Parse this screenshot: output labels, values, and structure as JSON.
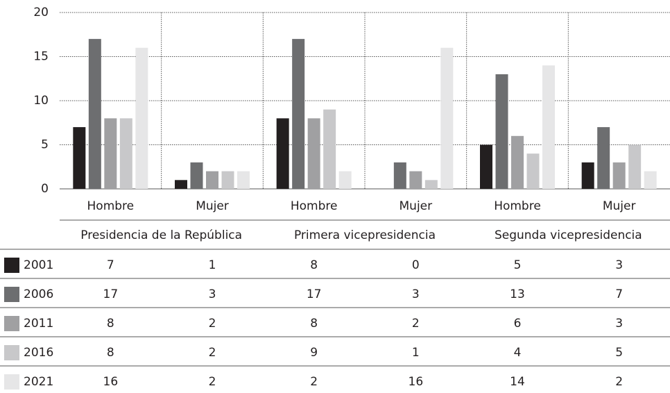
{
  "chart_data": {
    "type": "bar",
    "groups": [
      "Presidencia de la República",
      "Primera vicepresidencia",
      "Segunda vicepresidencia"
    ],
    "categories": [
      "Hombre",
      "Mujer",
      "Hombre",
      "Mujer",
      "Hombre",
      "Mujer"
    ],
    "series": [
      {
        "name": "2001",
        "color": "#231f20",
        "values": [
          7,
          1,
          8,
          0,
          5,
          3
        ]
      },
      {
        "name": "2006",
        "color": "#6d6e70",
        "values": [
          17,
          3,
          17,
          3,
          13,
          7
        ]
      },
      {
        "name": "2011",
        "color": "#a0a0a2",
        "values": [
          8,
          2,
          8,
          2,
          6,
          3
        ]
      },
      {
        "name": "2016",
        "color": "#c8c8ca",
        "values": [
          8,
          2,
          9,
          1,
          4,
          5
        ]
      },
      {
        "name": "2021",
        "color": "#e6e6e7",
        "values": [
          16,
          2,
          2,
          16,
          14,
          2
        ]
      }
    ],
    "ylim": [
      0,
      20
    ],
    "yticks": [
      0,
      5,
      10,
      15,
      20
    ],
    "grid": true
  }
}
